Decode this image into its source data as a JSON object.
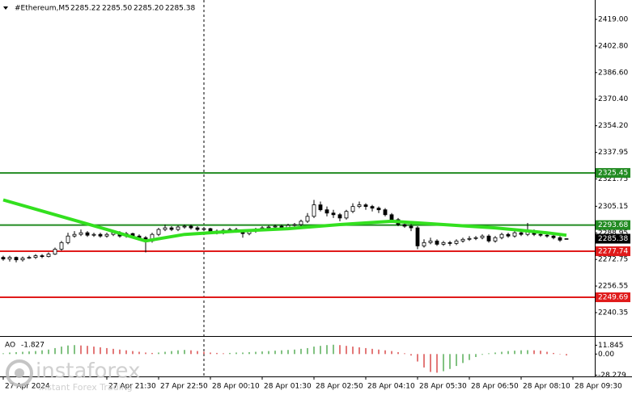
{
  "chart_data": {
    "type": "candlestick",
    "title": "#Ethereum,M5",
    "header_ohlc": [
      "2285.22",
      "2285.50",
      "2285.20",
      "2285.38"
    ],
    "open": [
      2274,
      2273,
      2274,
      2272.5,
      2273.5,
      2274,
      2275,
      2274.5,
      2276,
      2279,
      2283,
      2287,
      2288,
      2289,
      2287.5,
      2288,
      2287,
      2288,
      2289,
      2287,
      2288.5,
      2287,
      2286,
      2284,
      2288,
      2291,
      2292,
      2291,
      2292.5,
      2293,
      2292,
      2291,
      2291.5,
      2290,
      2289,
      2290.5,
      2291,
      2290,
      2288.5,
      2290,
      2291,
      2292,
      2292.5,
      2293,
      2292,
      2293.5,
      2294,
      2296,
      2299,
      2306,
      2303,
      2301,
      2300,
      2298,
      2302,
      2305,
      2306,
      2305,
      2304,
      2303,
      2300,
      2297,
      2294,
      2293,
      2292,
      2281,
      2283,
      2284,
      2282,
      2283,
      2282.5,
      2284,
      2285,
      2285.5,
      2286,
      2287,
      2284,
      2286,
      2288,
      2287,
      2289,
      2288,
      2290,
      2288,
      2287.5,
      2287,
      2286,
      2285.22
    ],
    "high": [
      2275,
      2275,
      2274.5,
      2274.5,
      2275,
      2276,
      2276,
      2277,
      2280,
      2284,
      2289,
      2290,
      2291,
      2290,
      2289,
      2289,
      2289,
      2290,
      2290,
      2289.5,
      2289,
      2288,
      2287,
      2289,
      2292,
      2294,
      2293,
      2293.5,
      2294,
      2294,
      2293,
      2292.5,
      2292,
      2291,
      2291.5,
      2292,
      2292,
      2291,
      2291,
      2292,
      2293,
      2293.5,
      2294,
      2294,
      2294.5,
      2295,
      2297,
      2301,
      2309,
      2308,
      2305,
      2303,
      2301,
      2303,
      2307,
      2308,
      2307,
      2306,
      2305,
      2304,
      2301,
      2298,
      2296,
      2295,
      2293,
      2285,
      2286,
      2285,
      2284,
      2284,
      2285,
      2286,
      2287,
      2287,
      2288,
      2288,
      2287,
      2289,
      2289,
      2290,
      2290,
      2295,
      2291,
      2289,
      2288.5,
      2288,
      2287,
      2285.5
    ],
    "low": [
      2272,
      2271.5,
      2271,
      2271.5,
      2273,
      2273,
      2273.5,
      2274,
      2275.5,
      2278,
      2282,
      2286,
      2287,
      2286.5,
      2286.5,
      2286,
      2286,
      2287,
      2286,
      2286,
      2286,
      2285,
      2277,
      2283,
      2287,
      2290,
      2290,
      2290,
      2291.5,
      2291,
      2290,
      2290,
      2289,
      2288,
      2288,
      2289.5,
      2289,
      2286,
      2287.5,
      2289,
      2290,
      2291,
      2291.5,
      2291,
      2291,
      2292.5,
      2293,
      2295,
      2298,
      2302,
      2299,
      2298,
      2296,
      2297,
      2301,
      2304,
      2303,
      2302,
      2301,
      2299,
      2296,
      2293,
      2292,
      2290,
      2279,
      2280,
      2282,
      2281,
      2281,
      2281,
      2281.5,
      2283,
      2284,
      2284.5,
      2285,
      2283,
      2283,
      2285,
      2286,
      2286,
      2287,
      2287,
      2287,
      2286.5,
      2286,
      2285,
      2283.5,
      2285.2
    ],
    "close": [
      2273,
      2274,
      2272.5,
      2273.5,
      2274,
      2275,
      2274.5,
      2276,
      2279,
      2283,
      2287,
      2288,
      2289,
      2287.5,
      2288,
      2287,
      2288,
      2289,
      2287,
      2288.5,
      2287,
      2286,
      2284,
      2288,
      2291,
      2292,
      2291,
      2292.5,
      2293,
      2292,
      2291,
      2291.5,
      2290,
      2289,
      2290.5,
      2291,
      2290,
      2288.5,
      2290,
      2291,
      2292,
      2292.5,
      2293,
      2292,
      2293.5,
      2294,
      2296,
      2299,
      2306,
      2303,
      2301,
      2300,
      2298,
      2302,
      2305,
      2306,
      2305,
      2304,
      2303,
      2300,
      2297,
      2294,
      2293,
      2292,
      2281,
      2283,
      2284,
      2282,
      2283,
      2282.5,
      2284,
      2285,
      2285.5,
      2286,
      2287,
      2284,
      2286,
      2288,
      2287,
      2289,
      2288,
      2290,
      2288,
      2287.5,
      2287,
      2286,
      2284.5,
      2285.38
    ],
    "up_color": "#ffffff",
    "down_color": "#000000",
    "edge_color": "#000000",
    "xlim": [
      -0.5,
      91.375
    ],
    "xticks": [
      {
        "value": 0,
        "label": "27 Apr 2024"
      },
      {
        "value": 16,
        "label": "27 Apr 21:30"
      },
      {
        "value": 24,
        "label": "27 Apr 22:50"
      },
      {
        "value": 32,
        "label": "28 Apr 00:10"
      },
      {
        "value": 40,
        "label": "28 Apr 01:30"
      },
      {
        "value": 48,
        "label": "28 Apr 02:50"
      },
      {
        "value": 56,
        "label": "28 Apr 04:10"
      },
      {
        "value": 64,
        "label": "28 Apr 05:30"
      },
      {
        "value": 72,
        "label": "28 Apr 06:50"
      },
      {
        "value": 80,
        "label": "28 Apr 08:10"
      },
      {
        "value": 88,
        "label": "28 Apr 09:30"
      }
    ],
    "separator": 31,
    "ylim": [
      2226.08,
      2430.81
    ],
    "yticks": [
      {
        "value": 2419,
        "label": "2419.00"
      },
      {
        "value": 2402.8,
        "label": "2402.80"
      },
      {
        "value": 2386.6,
        "label": "2386.60"
      },
      {
        "value": 2370.4,
        "label": "2370.40"
      },
      {
        "value": 2354.2,
        "label": "2354.20"
      },
      2337.95,
      2321.75,
      2305.15,
      2288.95,
      2272.75,
      2256.55,
      2240.35
    ],
    "ma": {
      "color": "#33e01f",
      "x": [
        0,
        8,
        16,
        22,
        28,
        36,
        44,
        52,
        60,
        68,
        76,
        84,
        87
      ],
      "values": [
        2309,
        2300,
        2291,
        2284,
        2288,
        2290,
        2291.5,
        2294,
        2296,
        2294,
        2292,
        2289,
        2287.5
      ]
    },
    "levels": [
      {
        "value": 2325.45,
        "color": "#228b22"
      },
      {
        "value": 2293.68,
        "color": "#228b22"
      },
      {
        "value": 2277.74,
        "color": "#e01b1b"
      },
      {
        "value": 2249.69,
        "color": "#e01b1b"
      }
    ],
    "ao": {
      "name": "AO",
      "up_color": "#2e9a2e",
      "down_color": "#d02020",
      "ylim": [
        -30,
        22
      ],
      "yticks": [
        11.845,
        {
          "value": 0,
          "label": "0.00"
        },
        -28.279
      ],
      "values": [
        1,
        2,
        2.5,
        3,
        3.5,
        4,
        5,
        6,
        8,
        10,
        11.5,
        12,
        11.5,
        11,
        10,
        9,
        8,
        7,
        6,
        5,
        4,
        3,
        2,
        1.5,
        2,
        3,
        4,
        5,
        5.5,
        5,
        4,
        3,
        2,
        1.5,
        1,
        1.5,
        2,
        2,
        2.5,
        3,
        3.5,
        4,
        4.5,
        5,
        5.5,
        6,
        7,
        8,
        10,
        11,
        12,
        12.5,
        12,
        11,
        10,
        9,
        8,
        7,
        6,
        5,
        4,
        2.5,
        1,
        -2,
        -10,
        -18,
        -24,
        -25,
        -23,
        -20,
        -16,
        -12,
        -8,
        -4,
        -1,
        1,
        2,
        3,
        4,
        4.5,
        5,
        5.2,
        5,
        4.5,
        3,
        1.5,
        0,
        -1.827
      ]
    },
    "watermark": {
      "brand": "instaforex",
      "tagline": "Instant Forex Trading"
    }
  }
}
